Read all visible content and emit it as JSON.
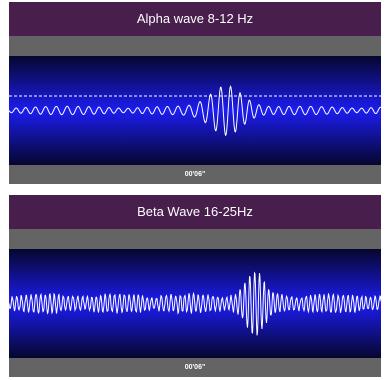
{
  "panels": [
    {
      "id": "alpha",
      "title": "Alpha wave 8-12 Hz",
      "time_label": "00'06\"",
      "trace_color": "#ffffff",
      "show_baseline": true
    },
    {
      "id": "beta",
      "title": "Beta Wave 16-25Hz",
      "time_label": "00'06\"",
      "trace_color": "#ffffff",
      "show_baseline": false
    }
  ],
  "colors": {
    "title_bar": "#471e4c",
    "band": "#646464",
    "wave_dark": "#06062e",
    "wave_bright": "#1c1cf0"
  }
}
